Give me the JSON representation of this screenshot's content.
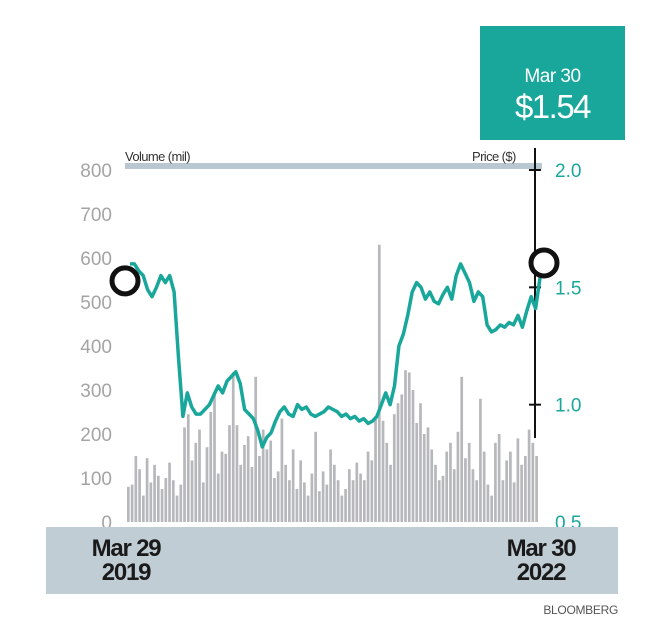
{
  "callout": {
    "date": "Mar 30",
    "value": "$1.54"
  },
  "source": "BLOOMBERG",
  "chart_data": {
    "type": "line",
    "title": "",
    "xlabel": "",
    "x_start": {
      "month": "Mar 29",
      "year": "2019"
    },
    "x_end": {
      "month": "Mar 30",
      "year": "2022"
    },
    "left_axis": {
      "label": "Volume (mil)",
      "range": [
        0,
        800
      ],
      "ticks": [
        "800",
        "700",
        "600",
        "500",
        "400",
        "300",
        "200",
        "100",
        "0"
      ]
    },
    "right_axis": {
      "label": "Price ($)",
      "range": [
        0.5,
        2.0
      ],
      "ticks": [
        "2.0",
        "1.5",
        "1.0",
        "0.5"
      ]
    },
    "series": [
      {
        "name": "Price ($)",
        "color": "#1aa79b",
        "values": [
          1.6,
          1.6,
          1.57,
          1.55,
          1.49,
          1.46,
          1.5,
          1.55,
          1.52,
          1.55,
          1.48,
          1.2,
          0.95,
          1.05,
          0.99,
          0.96,
          0.96,
          0.98,
          1.0,
          1.04,
          1.08,
          1.05,
          1.1,
          1.12,
          1.14,
          1.09,
          0.98,
          0.96,
          0.94,
          0.89,
          0.82,
          0.86,
          0.88,
          0.93,
          0.97,
          0.99,
          0.96,
          0.95,
          1.0,
          0.98,
          0.99,
          0.96,
          0.95,
          0.96,
          0.97,
          0.99,
          0.98,
          0.97,
          0.95,
          0.96,
          0.94,
          0.95,
          0.93,
          0.94,
          0.92,
          0.93,
          0.95,
          1.0,
          1.05,
          1.0,
          1.08,
          1.25,
          1.3,
          1.38,
          1.48,
          1.52,
          1.5,
          1.45,
          1.48,
          1.44,
          1.43,
          1.47,
          1.5,
          1.45,
          1.55,
          1.6,
          1.56,
          1.52,
          1.44,
          1.48,
          1.46,
          1.34,
          1.31,
          1.32,
          1.34,
          1.33,
          1.35,
          1.34,
          1.38,
          1.33,
          1.4,
          1.46,
          1.41,
          1.54
        ]
      },
      {
        "name": "Volume (mil)",
        "type": "bar",
        "color": "#b6b8bb",
        "values": [
          80,
          85,
          150,
          120,
          60,
          145,
          90,
          130,
          105,
          75,
          100,
          135,
          95,
          60,
          85,
          215,
          245,
          140,
          180,
          210,
          90,
          170,
          250,
          290,
          110,
          160,
          155,
          220,
          340,
          220,
          130,
          175,
          195,
          125,
          330,
          150,
          210,
          165,
          185,
          100,
          115,
          235,
          130,
          95,
          165,
          75,
          140,
          90,
          60,
          110,
          205,
          70,
          115,
          85,
          165,
          130,
          95,
          60,
          75,
          120,
          95,
          135,
          110,
          95,
          160,
          140,
          240,
          630,
          230,
          180,
          130,
          245,
          270,
          290,
          345,
          340,
          300,
          225,
          270,
          200,
          215,
          165,
          130,
          95,
          105,
          160,
          180,
          120,
          205,
          330,
          145,
          180,
          120,
          95,
          280,
          160,
          85,
          60,
          180,
          200,
          95,
          140,
          160,
          90,
          190,
          130,
          150,
          210,
          180,
          150
        ]
      }
    ],
    "annotations": [
      "start",
      "end"
    ]
  }
}
